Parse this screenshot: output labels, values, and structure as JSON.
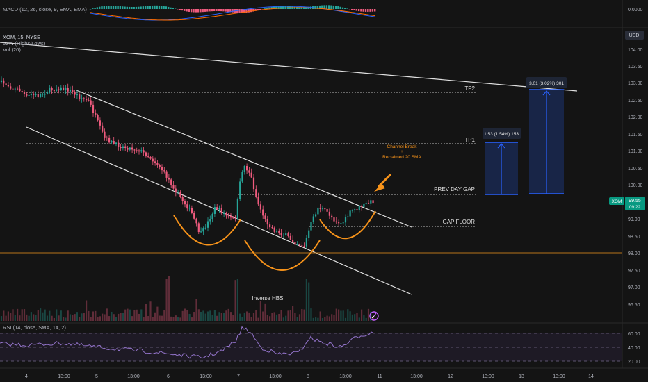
{
  "header": {
    "macd_label": "MACD (12, 26, close, 9, EMA, EMA)",
    "symbol_label": "XOM, 15, NYSE",
    "hilo_label": "52W (Highs/Lows)",
    "vol_label": "Vol (20)",
    "rsi_label": "RSI (14, close, SMA, 14, 2)",
    "currency_button": "USD"
  },
  "price_axis": {
    "ticks": [
      "104.00",
      "103.50",
      "103.00",
      "102.50",
      "102.00",
      "101.50",
      "101.00",
      "100.50",
      "100.00",
      "99.00",
      "98.50",
      "98.00",
      "97.50",
      "97.00",
      "96.50"
    ],
    "macd_tick": "0.0000",
    "rsi_ticks": [
      "60.00",
      "40.00",
      "20.00"
    ],
    "current_symbol": "XOM",
    "current_price": "99.55",
    "countdown": "09:22",
    "colors": {
      "symbol_badge": "#089981",
      "up": "#26a69a",
      "down": "#ef5b7e"
    }
  },
  "time_axis": {
    "ticks": [
      "4",
      "13:00",
      "5",
      "13:00",
      "6",
      "13:00",
      "7",
      "13:00",
      "8",
      "13:00",
      "11",
      "13:00",
      "12",
      "13:00",
      "13",
      "13:00",
      "14"
    ]
  },
  "annotations": {
    "tp2": "TP2",
    "tp1": "TP1",
    "prev_day_gap": "PREV DAY GAP",
    "gap_floor": "GAP FLOOR",
    "channel_break": "Channel Break",
    "plus": "+",
    "reclaimed": "Reclaimed 20 SMA",
    "inverse_hbs": "Inverse HBS",
    "tp1_measure": "1.53 (1.54%) 153",
    "tp2_measure": "3.01 (3.02%) 301",
    "colors": {
      "accent": "#f7931a",
      "measure": "#2962ff",
      "line": "#e0e0e0"
    }
  },
  "chart_data": {
    "type": "candlestick",
    "symbol": "XOM",
    "interval": "15",
    "exchange": "NYSE",
    "last_price": 99.55,
    "levels": {
      "TP2": 102.68,
      "TP1": 101.23,
      "PREV DAY GAP": 99.75,
      "GAP FLOOR": 98.78
    },
    "measures": [
      {
        "label": "1.53 (1.54%) 153",
        "from": 99.75,
        "to": 101.28
      },
      {
        "label": "3.01 (3.02%) 301",
        "from": 99.75,
        "to": 102.76
      }
    ],
    "ylim": [
      96.3,
      104.6
    ],
    "rsi_levels": [
      60,
      40,
      20
    ]
  }
}
